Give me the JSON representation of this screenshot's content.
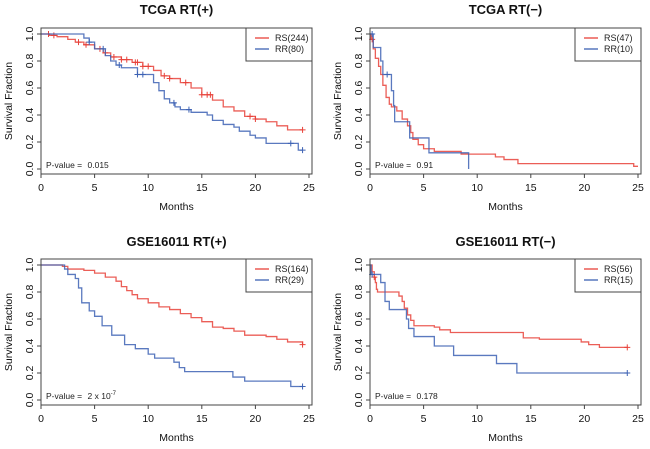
{
  "chart_data": [
    {
      "type": "line",
      "subtype": "kaplan-meier",
      "title": "TCGA RT(+)",
      "xlabel": "Months",
      "ylabel": "Survival Fraction",
      "xlim": [
        0,
        25
      ],
      "ylim": [
        0,
        1
      ],
      "xticks": [
        "0",
        "5",
        "10",
        "15",
        "20",
        "25"
      ],
      "yticks": [
        "0.0",
        "0.2",
        "0.4",
        "0.6",
        "0.8",
        "1.0"
      ],
      "legend_position": "top-right",
      "annotation": {
        "text": "P-value = ",
        "value": "0.015"
      },
      "series": [
        {
          "name": "RS(244)",
          "color": "#e8423a",
          "x": [
            0,
            0.8,
            1.5,
            2.5,
            3.2,
            4.0,
            5.0,
            5.8,
            6.5,
            7.5,
            8.5,
            9.5,
            10.5,
            11.2,
            12.0,
            13.0,
            14.0,
            15.0,
            16.0,
            17.0,
            18.0,
            19.0,
            20.0,
            21.0,
            22.0,
            23.0,
            24.4
          ],
          "y": [
            1.0,
            0.99,
            0.98,
            0.96,
            0.94,
            0.92,
            0.89,
            0.86,
            0.83,
            0.81,
            0.79,
            0.76,
            0.73,
            0.69,
            0.67,
            0.64,
            0.6,
            0.55,
            0.51,
            0.46,
            0.43,
            0.39,
            0.37,
            0.35,
            0.32,
            0.29,
            0.29
          ],
          "censor_x": [
            0.7,
            1.2,
            3.5,
            4.2,
            5.5,
            6.0,
            6.8,
            7.5,
            8.0,
            8.8,
            9.0,
            9.5,
            10.0,
            11.5,
            12.0,
            13.5,
            15.0,
            15.5,
            15.8,
            19.5,
            20.0,
            24.4
          ]
        },
        {
          "name": "RR(80)",
          "color": "#3d62b4",
          "x": [
            0,
            3.2,
            4.0,
            4.5,
            5.0,
            6.0,
            6.5,
            7.0,
            7.5,
            9.0,
            10.5,
            11.0,
            11.5,
            12.0,
            12.5,
            13.0,
            14.0,
            15.5,
            16.0,
            17.0,
            18.0,
            18.5,
            19.5,
            20.0,
            21.0,
            23.5,
            24.0,
            24.4
          ],
          "y": [
            1.0,
            1.0,
            0.97,
            0.94,
            0.89,
            0.84,
            0.8,
            0.77,
            0.75,
            0.7,
            0.64,
            0.58,
            0.52,
            0.49,
            0.46,
            0.44,
            0.42,
            0.4,
            0.36,
            0.33,
            0.31,
            0.28,
            0.25,
            0.23,
            0.19,
            0.19,
            0.14,
            0.14
          ],
          "censor_x": [
            4.5,
            5.8,
            7.3,
            9.0,
            9.5,
            12.4,
            13.8,
            23.3,
            24.4
          ]
        }
      ]
    },
    {
      "type": "line",
      "subtype": "kaplan-meier",
      "title": "TCGA RT(−)",
      "xlabel": "Months",
      "ylabel": "Survival Fraction",
      "xlim": [
        0,
        25
      ],
      "ylim": [
        0,
        1
      ],
      "xticks": [
        "0",
        "5",
        "10",
        "15",
        "20",
        "25"
      ],
      "yticks": [
        "0.0",
        "0.2",
        "0.4",
        "0.6",
        "0.8",
        "1.0"
      ],
      "legend_position": "top-right",
      "annotation": {
        "text": "P-value = ",
        "value": "0.91"
      },
      "series": [
        {
          "name": "RS(47)",
          "color": "#e8423a",
          "x": [
            0,
            0.1,
            0.3,
            0.5,
            0.8,
            1.0,
            1.2,
            1.5,
            1.8,
            2.0,
            2.5,
            3.0,
            3.5,
            3.8,
            4.0,
            4.5,
            5.0,
            6.0,
            8.5,
            11.7,
            12.5,
            13.8,
            24.4,
            24.6,
            25.0
          ],
          "y": [
            1.0,
            0.96,
            0.89,
            0.82,
            0.76,
            0.7,
            0.62,
            0.53,
            0.48,
            0.46,
            0.43,
            0.37,
            0.32,
            0.27,
            0.22,
            0.18,
            0.15,
            0.13,
            0.11,
            0.09,
            0.07,
            0.04,
            0.04,
            0.02,
            0.02
          ],
          "censor_x": [
            0.2
          ]
        },
        {
          "name": "RR(10)",
          "color": "#3d62b4",
          "x": [
            0,
            0.3,
            1.0,
            1.2,
            2.0,
            2.2,
            2.3,
            3.7,
            3.8,
            5.5,
            9.2,
            9.2
          ],
          "y": [
            1.0,
            0.9,
            0.8,
            0.7,
            0.58,
            0.47,
            0.35,
            0.23,
            0.23,
            0.12,
            0.12,
            0.0
          ],
          "censor_x": [
            0.2,
            1.6
          ]
        }
      ]
    },
    {
      "type": "line",
      "subtype": "kaplan-meier",
      "title": "GSE16011 RT(+)",
      "xlabel": "Months",
      "ylabel": "Survival Fraction",
      "xlim": [
        0,
        25
      ],
      "ylim": [
        0,
        1
      ],
      "xticks": [
        "0",
        "5",
        "10",
        "15",
        "20",
        "25"
      ],
      "yticks": [
        "0.0",
        "0.2",
        "0.4",
        "0.6",
        "0.8",
        "1.0"
      ],
      "legend_position": "top-right",
      "annotation": {
        "text": "P-value = ",
        "value": "2 x 10",
        "exponent": "-7"
      },
      "series": [
        {
          "name": "RS(164)",
          "color": "#e8423a",
          "x": [
            0,
            2.0,
            2.5,
            4.0,
            5.0,
            6.0,
            7.0,
            7.5,
            8.0,
            8.5,
            9.0,
            10.0,
            11.0,
            12.0,
            13.0,
            14.0,
            15.0,
            16.0,
            17.0,
            18.0,
            19.0,
            20.0,
            21.0,
            22.0,
            23.0,
            24.4
          ],
          "y": [
            1.0,
            0.99,
            0.97,
            0.96,
            0.94,
            0.91,
            0.88,
            0.84,
            0.81,
            0.78,
            0.75,
            0.72,
            0.69,
            0.67,
            0.64,
            0.61,
            0.58,
            0.54,
            0.53,
            0.51,
            0.48,
            0.48,
            0.47,
            0.45,
            0.43,
            0.41
          ],
          "censor_x": [
            24.4
          ]
        },
        {
          "name": "RR(29)",
          "color": "#3d62b4",
          "x": [
            0,
            1.9,
            2.2,
            2.5,
            3.2,
            3.5,
            3.8,
            4.5,
            5.0,
            5.7,
            6.6,
            7.8,
            8.8,
            10.0,
            10.6,
            12.4,
            12.9,
            13.4,
            17.9,
            19.0,
            23.3,
            24.4
          ],
          "y": [
            1.0,
            1.0,
            0.97,
            0.93,
            0.9,
            0.83,
            0.72,
            0.66,
            0.62,
            0.55,
            0.48,
            0.41,
            0.38,
            0.34,
            0.31,
            0.28,
            0.24,
            0.21,
            0.17,
            0.14,
            0.1,
            0.1
          ],
          "censor_x": [
            24.4
          ]
        }
      ]
    },
    {
      "type": "line",
      "subtype": "kaplan-meier",
      "title": "GSE16011 RT(−)",
      "xlabel": "Months",
      "ylabel": "Survival Fraction",
      "xlim": [
        0,
        25
      ],
      "ylim": [
        0,
        1
      ],
      "xticks": [
        "0",
        "5",
        "10",
        "15",
        "20",
        "25"
      ],
      "yticks": [
        "0.0",
        "0.2",
        "0.4",
        "0.6",
        "0.8",
        "1.0"
      ],
      "legend_position": "top-right",
      "annotation": {
        "text": "P-value = ",
        "value": "0.178"
      },
      "series": [
        {
          "name": "RS(56)",
          "color": "#e8423a",
          "x": [
            0,
            0.2,
            0.4,
            0.5,
            0.6,
            0.7,
            2.5,
            2.7,
            3.0,
            3.2,
            3.5,
            3.8,
            4.1,
            6.0,
            6.5,
            7.5,
            14.3,
            15.8,
            19.7,
            20.4,
            21.4,
            24.0
          ],
          "y": [
            1.0,
            0.95,
            0.91,
            0.87,
            0.82,
            0.8,
            0.8,
            0.77,
            0.73,
            0.68,
            0.63,
            0.59,
            0.55,
            0.54,
            0.52,
            0.5,
            0.46,
            0.45,
            0.43,
            0.41,
            0.39,
            0.39
          ],
          "censor_x": [
            0.4,
            24.0
          ]
        },
        {
          "name": "RR(15)",
          "color": "#3d62b4",
          "x": [
            0,
            0.1,
            1.0,
            1.4,
            1.8,
            3.4,
            3.6,
            4.1,
            6.0,
            7.8,
            11.8,
            13.7,
            24.0
          ],
          "y": [
            1.0,
            0.93,
            0.87,
            0.73,
            0.67,
            0.6,
            0.53,
            0.47,
            0.4,
            0.33,
            0.27,
            0.2,
            0.2
          ],
          "censor_x": [
            0.2,
            24.0
          ]
        }
      ]
    }
  ]
}
